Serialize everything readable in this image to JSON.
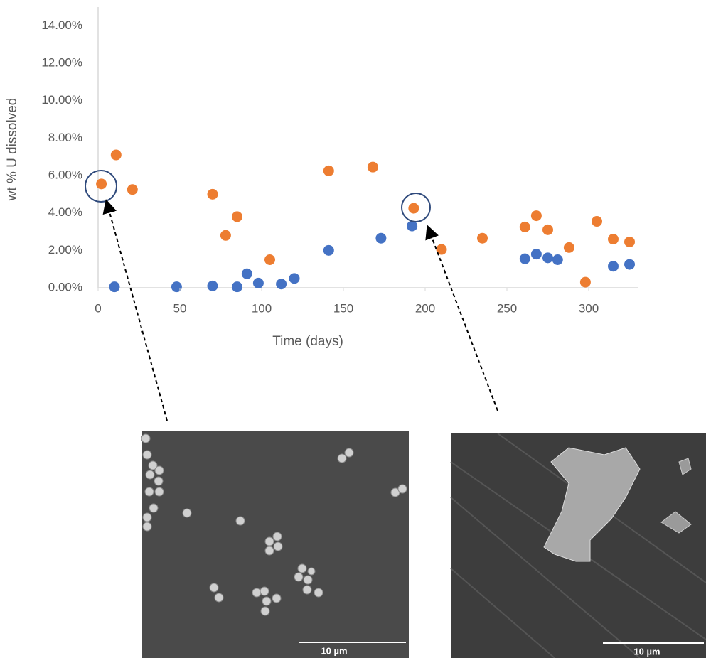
{
  "chart_data": {
    "type": "scatter",
    "x_label": "Time (days)",
    "y_label": "wt % U dissolved",
    "xlim": [
      0,
      330
    ],
    "xticks": [
      0,
      50,
      100,
      150,
      200,
      250,
      300
    ],
    "ylim": [
      0,
      15
    ],
    "yticks": [
      {
        "value": 0,
        "label": "0.00%"
      },
      {
        "value": 2,
        "label": "2.00%"
      },
      {
        "value": 4,
        "label": "4.00%"
      },
      {
        "value": 6,
        "label": "6.00%"
      },
      {
        "value": 8,
        "label": "8.00%"
      },
      {
        "value": 10,
        "label": "10.00%"
      },
      {
        "value": 12,
        "label": "12.00%"
      },
      {
        "value": 14,
        "label": "14.00%"
      }
    ],
    "grid": false,
    "series": [
      {
        "color": "#ed7d31",
        "x": [
          2,
          11,
          21,
          70,
          78,
          85,
          105,
          141,
          168,
          193,
          210,
          235,
          261,
          268,
          275,
          288,
          298,
          305,
          315,
          325
        ],
        "values": [
          5.55,
          7.1,
          5.25,
          5.0,
          2.8,
          3.8,
          1.5,
          6.25,
          6.45,
          4.25,
          2.05,
          2.65,
          3.25,
          3.85,
          3.1,
          2.15,
          0.3,
          3.55,
          2.6,
          2.45
        ]
      },
      {
        "color": "#4472c4",
        "x": [
          10,
          48,
          70,
          85,
          91,
          98,
          112,
          120,
          141,
          173,
          192,
          261,
          268,
          275,
          281,
          315,
          325
        ],
        "values": [
          0.05,
          0.05,
          0.1,
          0.05,
          0.75,
          0.25,
          0.2,
          0.5,
          2.0,
          2.65,
          3.3,
          1.55,
          1.8,
          1.6,
          1.5,
          1.15,
          1.25
        ]
      }
    ]
  },
  "images": [
    {
      "scale_label": "10 µm"
    },
    {
      "scale_label": "10 µm"
    }
  ]
}
